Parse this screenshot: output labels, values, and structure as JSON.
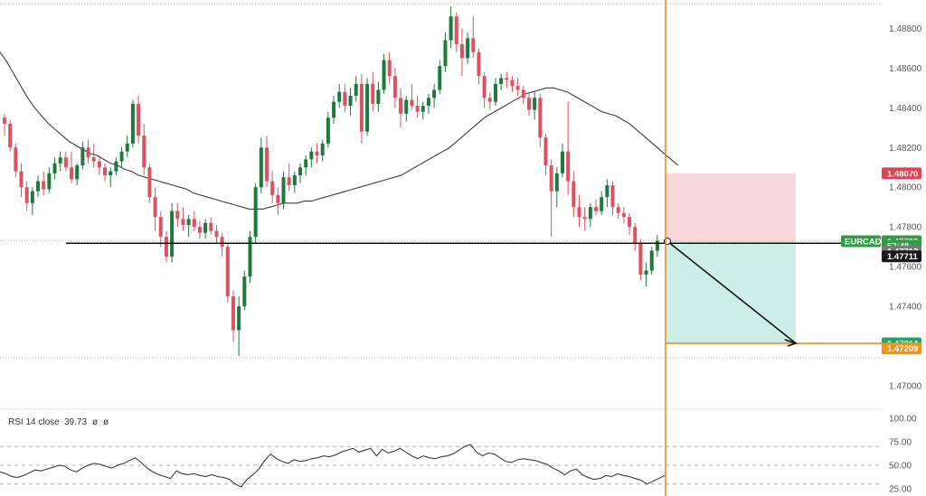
{
  "colors": {
    "up": "#1e7a3c",
    "down": "#e0515f",
    "ma": "#3b3b3b",
    "vline": "#e08a1e",
    "stop_zone": "#f9d6da",
    "target_zone": "#cdeee6",
    "stop_tag": "#e04451",
    "target_tag": "#21a267",
    "symbol_tag": "#2f9e44",
    "countdown_tag": "#2f9e44",
    "price_tag_gray": "#7a7a7a",
    "price_tag_black": "#1a1a1a",
    "orange_tag": "#f09318"
  },
  "chart_data": {
    "type": "candlestick",
    "symbol": "EURCAD",
    "y_ticks": [
      "1.48800",
      "1.48600",
      "1.48400",
      "1.48200",
      "1.48000",
      "1.47800",
      "1.47600",
      "1.47400",
      "1.47200",
      "1.47000"
    ],
    "ylim": [
      1.469,
      1.4892
    ],
    "grid": false,
    "candles": [
      [
        1.4835,
        1.4837,
        1.4826,
        1.4832
      ],
      [
        1.4832,
        1.4834,
        1.4818,
        1.482
      ],
      [
        1.482,
        1.4822,
        1.4805,
        1.4808
      ],
      [
        1.4808,
        1.4812,
        1.4795,
        1.48
      ],
      [
        1.48,
        1.4803,
        1.4788,
        1.4792
      ],
      [
        1.4792,
        1.48,
        1.4786,
        1.4798
      ],
      [
        1.4798,
        1.4806,
        1.4795,
        1.4803
      ],
      [
        1.4803,
        1.4808,
        1.4796,
        1.4799
      ],
      [
        1.4799,
        1.481,
        1.4797,
        1.4807
      ],
      [
        1.4807,
        1.4815,
        1.4804,
        1.4812
      ],
      [
        1.4812,
        1.4818,
        1.4808,
        1.4815
      ],
      [
        1.4815,
        1.4818,
        1.4808,
        1.481
      ],
      [
        1.481,
        1.4818,
        1.4802,
        1.4804
      ],
      [
        1.4804,
        1.4812,
        1.4801,
        1.4811
      ],
      [
        1.4811,
        1.4823,
        1.4809,
        1.482
      ],
      [
        1.482,
        1.4824,
        1.4812,
        1.4815
      ],
      [
        1.4815,
        1.4822,
        1.481,
        1.4813
      ],
      [
        1.4813,
        1.4816,
        1.4806,
        1.481
      ],
      [
        1.481,
        1.4812,
        1.4803,
        1.4806
      ],
      [
        1.4806,
        1.481,
        1.48,
        1.4808
      ],
      [
        1.4808,
        1.4815,
        1.4806,
        1.4813
      ],
      [
        1.4813,
        1.482,
        1.481,
        1.4818
      ],
      [
        1.4818,
        1.4826,
        1.4815,
        1.4822
      ],
      [
        1.4822,
        1.4844,
        1.482,
        1.4842
      ],
      [
        1.4842,
        1.4846,
        1.4822,
        1.4826
      ],
      [
        1.4826,
        1.4832,
        1.4806,
        1.481
      ],
      [
        1.481,
        1.4812,
        1.4792,
        1.4795
      ],
      [
        1.4795,
        1.48,
        1.4778,
        1.4785
      ],
      [
        1.4785,
        1.4788,
        1.477,
        1.4775
      ],
      [
        1.4775,
        1.4778,
        1.4762,
        1.4765
      ],
      [
        1.4765,
        1.4792,
        1.4762,
        1.4788
      ],
      [
        1.4788,
        1.4792,
        1.478,
        1.4784
      ],
      [
        1.4784,
        1.479,
        1.4778,
        1.4781
      ],
      [
        1.4781,
        1.4786,
        1.4775,
        1.4784
      ],
      [
        1.4784,
        1.4788,
        1.4778,
        1.478
      ],
      [
        1.478,
        1.4783,
        1.4774,
        1.4777
      ],
      [
        1.4777,
        1.4784,
        1.4774,
        1.4782
      ],
      [
        1.4782,
        1.4785,
        1.4776,
        1.4778
      ],
      [
        1.4778,
        1.4781,
        1.4772,
        1.4775
      ],
      [
        1.4775,
        1.4777,
        1.4765,
        1.477
      ],
      [
        1.477,
        1.4772,
        1.4742,
        1.4745
      ],
      [
        1.4745,
        1.4748,
        1.4722,
        1.4728
      ],
      [
        1.4728,
        1.4745,
        1.4715,
        1.474
      ],
      [
        1.474,
        1.4758,
        1.4738,
        1.4755
      ],
      [
        1.4755,
        1.4778,
        1.4752,
        1.4775
      ],
      [
        1.4775,
        1.4802,
        1.4772,
        1.48
      ],
      [
        1.48,
        1.4825,
        1.4797,
        1.482
      ],
      [
        1.482,
        1.4826,
        1.48,
        1.4803
      ],
      [
        1.4803,
        1.4808,
        1.4792,
        1.4796
      ],
      [
        1.4796,
        1.48,
        1.4786,
        1.4792
      ],
      [
        1.4792,
        1.4808,
        1.4789,
        1.4805
      ],
      [
        1.4805,
        1.4812,
        1.4798,
        1.4801
      ],
      [
        1.4801,
        1.4808,
        1.4797,
        1.4806
      ],
      [
        1.4806,
        1.4812,
        1.4802,
        1.481
      ],
      [
        1.481,
        1.4816,
        1.4806,
        1.4814
      ],
      [
        1.4814,
        1.482,
        1.481,
        1.4818
      ],
      [
        1.4818,
        1.4822,
        1.4812,
        1.4816
      ],
      [
        1.4816,
        1.4824,
        1.4813,
        1.4822
      ],
      [
        1.4822,
        1.4838,
        1.482,
        1.4835
      ],
      [
        1.4835,
        1.4846,
        1.4832,
        1.4843
      ],
      [
        1.4843,
        1.4852,
        1.484,
        1.4848
      ],
      [
        1.4848,
        1.4852,
        1.4838,
        1.4841
      ],
      [
        1.4841,
        1.485,
        1.4836,
        1.4846
      ],
      [
        1.4846,
        1.4856,
        1.4843,
        1.4852
      ],
      [
        1.4852,
        1.4857,
        1.4822,
        1.4828
      ],
      [
        1.4828,
        1.4855,
        1.4826,
        1.4852
      ],
      [
        1.4852,
        1.4858,
        1.4838,
        1.4842
      ],
      [
        1.4842,
        1.4853,
        1.4838,
        1.4849
      ],
      [
        1.4849,
        1.4867,
        1.4847,
        1.4864
      ],
      [
        1.4864,
        1.4868,
        1.4852,
        1.4856
      ],
      [
        1.4856,
        1.486,
        1.484,
        1.4845
      ],
      [
        1.4845,
        1.485,
        1.483,
        1.4837
      ],
      [
        1.4837,
        1.4846,
        1.4833,
        1.4844
      ],
      [
        1.4844,
        1.4852,
        1.4839,
        1.4841
      ],
      [
        1.4841,
        1.4846,
        1.4835,
        1.4838
      ],
      [
        1.4838,
        1.4843,
        1.4834,
        1.4841
      ],
      [
        1.4841,
        1.4847,
        1.4837,
        1.4845
      ],
      [
        1.4845,
        1.4852,
        1.484,
        1.4849
      ],
      [
        1.4849,
        1.4864,
        1.4847,
        1.4861
      ],
      [
        1.4861,
        1.4878,
        1.4858,
        1.4874
      ],
      [
        1.4874,
        1.4891,
        1.487,
        1.4886
      ],
      [
        1.4886,
        1.4888,
        1.4868,
        1.4872
      ],
      [
        1.4872,
        1.488,
        1.4856,
        1.4865
      ],
      [
        1.4865,
        1.4878,
        1.4862,
        1.4875
      ],
      [
        1.4875,
        1.4886,
        1.4865,
        1.4868
      ],
      [
        1.4868,
        1.487,
        1.4852,
        1.4856
      ],
      [
        1.4856,
        1.4858,
        1.484,
        1.4845
      ],
      [
        1.4845,
        1.4848,
        1.4839,
        1.4843
      ],
      [
        1.4843,
        1.4855,
        1.4841,
        1.4852
      ],
      [
        1.4852,
        1.4857,
        1.4849,
        1.4855
      ],
      [
        1.4855,
        1.4858,
        1.485,
        1.4854
      ],
      [
        1.4854,
        1.4856,
        1.4848,
        1.4851
      ],
      [
        1.4851,
        1.4855,
        1.4846,
        1.4849
      ],
      [
        1.4849,
        1.4851,
        1.4842,
        1.4845
      ],
      [
        1.4845,
        1.4848,
        1.4836,
        1.4839
      ],
      [
        1.4839,
        1.4848,
        1.4834,
        1.4845
      ],
      [
        1.4845,
        1.4847,
        1.482,
        1.4825
      ],
      [
        1.4825,
        1.4827,
        1.4806,
        1.4811
      ],
      [
        1.4811,
        1.4814,
        1.4775,
        1.4798
      ],
      [
        1.4798,
        1.481,
        1.479,
        1.4807
      ],
      [
        1.4807,
        1.4822,
        1.4805,
        1.4818
      ],
      [
        1.4818,
        1.4843,
        1.4796,
        1.4803
      ],
      [
        1.4803,
        1.4808,
        1.4785,
        1.479
      ],
      [
        1.479,
        1.4796,
        1.478,
        1.4785
      ],
      [
        1.4785,
        1.479,
        1.4778,
        1.4784
      ],
      [
        1.4784,
        1.4792,
        1.478,
        1.479
      ],
      [
        1.479,
        1.4794,
        1.4786,
        1.4788
      ],
      [
        1.4788,
        1.4798,
        1.4786,
        1.4795
      ],
      [
        1.4795,
        1.4804,
        1.479,
        1.4801
      ],
      [
        1.4801,
        1.4803,
        1.4786,
        1.479
      ],
      [
        1.479,
        1.4792,
        1.4784,
        1.4787
      ],
      [
        1.4787,
        1.479,
        1.4782,
        1.4785
      ],
      [
        1.4785,
        1.4787,
        1.4776,
        1.478
      ],
      [
        1.478,
        1.4782,
        1.4768,
        1.4772
      ],
      [
        1.4772,
        1.4774,
        1.4753,
        1.4756
      ],
      [
        1.4756,
        1.4762,
        1.475,
        1.4758
      ],
      [
        1.4758,
        1.477,
        1.4756,
        1.4768
      ],
      [
        1.4768,
        1.4776,
        1.4765,
        1.4773
      ]
    ],
    "ma_series": [
      1.4868,
      1.4863,
      1.4857,
      1.4851,
      1.4845,
      1.484,
      1.4836,
      1.4832,
      1.4829,
      1.4826,
      1.4823,
      1.4821,
      1.4819,
      1.4817,
      1.4816,
      1.4814,
      1.4812,
      1.4811,
      1.4809,
      1.4808,
      1.4806,
      1.4805,
      1.4804,
      1.4803,
      1.4802,
      1.4801,
      1.48,
      1.4799,
      1.4797,
      1.4796,
      1.4795,
      1.4794,
      1.4793,
      1.4792,
      1.4791,
      1.479,
      1.4789,
      1.4789,
      1.4789,
      1.479,
      1.4791,
      1.4792,
      1.4792,
      1.4792,
      1.4793,
      1.4793,
      1.4794,
      1.4795,
      1.4796,
      1.4797,
      1.4798,
      1.4799,
      1.48,
      1.4801,
      1.4802,
      1.4803,
      1.4804,
      1.4805,
      1.4806,
      1.4808,
      1.481,
      1.4812,
      1.4814,
      1.4816,
      1.4818,
      1.482,
      1.4823,
      1.4826,
      1.4829,
      1.4832,
      1.4835,
      1.4837,
      1.4839,
      1.4841,
      1.4843,
      1.4845,
      1.4847,
      1.4848,
      1.4849,
      1.485,
      1.485,
      1.4849,
      1.4848,
      1.4846,
      1.4844,
      1.4842,
      1.484,
      1.4838,
      1.4837,
      1.4836,
      1.4834,
      1.4832,
      1.4829,
      1.4826,
      1.4823,
      1.482,
      1.4817,
      1.4814,
      1.4811
    ],
    "horizontal_line": 1.47718,
    "position": {
      "stop_price": 1.4807,
      "entry_price": 1.47728,
      "target_price": 1.47214
    },
    "price_tags": [
      {
        "label": "1.48070",
        "price": 1.4807,
        "color": "#e04451"
      },
      {
        "label": "1.47728",
        "price": 1.47728,
        "color": "#2f9e44"
      },
      {
        "label": "57:48",
        "price": 1.47705,
        "color": "#2f9e44"
      },
      {
        "label": "1.47713",
        "price": 1.47677,
        "color": "#7a7a7a"
      },
      {
        "label": "1.47711",
        "price": 1.47652,
        "color": "#1a1a1a"
      },
      {
        "label": "1.47214",
        "price": 1.47214,
        "color": "#21a267"
      },
      {
        "label": "1.47209",
        "price": 1.47188,
        "color": "#f09318"
      }
    ],
    "symbol_tag": "EURCAD",
    "rsi": {
      "label": "RSI 14 close",
      "value": "39.73",
      "flags": [
        "ø",
        "ø"
      ],
      "y_ticks": [
        "100.00",
        "75.00",
        "50.00",
        "25.00"
      ],
      "levels": [
        70,
        50,
        30
      ],
      "ylim": [
        25,
        100
      ],
      "values": [
        43,
        41,
        38,
        37,
        39,
        42,
        45,
        44,
        46,
        48,
        50,
        49,
        45,
        43,
        47,
        50,
        52,
        51,
        49,
        47,
        50,
        52,
        55,
        58,
        53,
        47,
        43,
        40,
        38,
        36,
        44,
        41,
        40,
        41,
        39,
        38,
        40,
        38,
        37,
        35,
        30,
        27,
        35,
        40,
        46,
        55,
        62,
        57,
        54,
        52,
        56,
        54,
        55,
        57,
        58,
        60,
        59,
        61,
        64,
        66,
        68,
        64,
        66,
        68,
        60,
        67,
        63,
        65,
        68,
        64,
        60,
        57,
        60,
        58,
        57,
        59,
        60,
        62,
        66,
        70,
        72,
        64,
        60,
        63,
        62,
        58,
        54,
        53,
        56,
        57,
        56,
        55,
        53,
        51,
        47,
        44,
        40,
        44,
        46,
        40,
        37,
        35,
        36,
        39,
        38,
        41,
        39,
        38,
        36,
        34,
        30,
        33,
        36,
        39
      ]
    }
  }
}
